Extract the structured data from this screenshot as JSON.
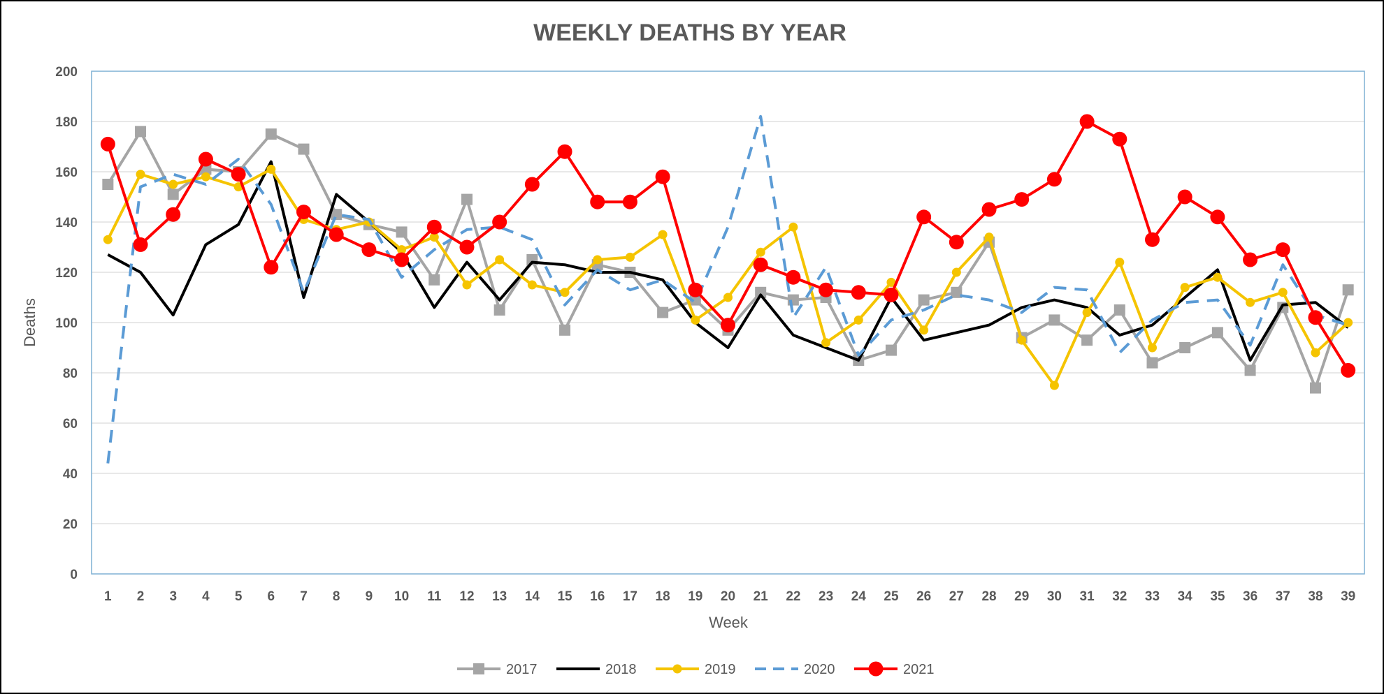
{
  "chart_data": {
    "type": "line",
    "title": "WEEKLY DEATHS BY YEAR",
    "xlabel": "Week",
    "ylabel": "Deaths",
    "ylim": [
      0,
      200
    ],
    "yticks": [
      0,
      20,
      40,
      60,
      80,
      100,
      120,
      140,
      160,
      180,
      200
    ],
    "grid": true,
    "legend_position": "bottom",
    "categories": [
      "1",
      "2",
      "3",
      "4",
      "5",
      "6",
      "7",
      "8",
      "9",
      "10",
      "11",
      "12",
      "13",
      "14",
      "15",
      "16",
      "17",
      "18",
      "19",
      "20",
      "21",
      "22",
      "23",
      "24",
      "25",
      "26",
      "27",
      "28",
      "29",
      "30",
      "31",
      "32",
      "33",
      "34",
      "35",
      "36",
      "37",
      "38",
      "39"
    ],
    "series": [
      {
        "name": "2017",
        "color": "#a5a5a5",
        "marker": "square",
        "dash": "solid",
        "values": [
          155,
          176,
          151,
          161,
          160,
          175,
          169,
          143,
          139,
          136,
          117,
          149,
          105,
          125,
          97,
          123,
          120,
          104,
          109,
          97,
          112,
          109,
          110,
          85,
          89,
          109,
          112,
          132,
          94,
          101,
          93,
          105,
          84,
          90,
          96,
          81,
          106,
          74,
          113
        ]
      },
      {
        "name": "2018",
        "color": "#000000",
        "marker": "none",
        "dash": "solid",
        "values": [
          127,
          120,
          103,
          131,
          139,
          164,
          110,
          151,
          140,
          128,
          106,
          124,
          109,
          124,
          123,
          120,
          120,
          117,
          100,
          90,
          111,
          95,
          90,
          85,
          110,
          93,
          96,
          99,
          106,
          109,
          106,
          95,
          99,
          110,
          121,
          85,
          107,
          108,
          98
        ]
      },
      {
        "name": "2019",
        "color": "#f5c400",
        "marker": "circle",
        "dash": "solid",
        "values": [
          133,
          159,
          155,
          158,
          154,
          161,
          141,
          137,
          140,
          129,
          134,
          115,
          125,
          115,
          112,
          125,
          126,
          135,
          101,
          110,
          128,
          138,
          92,
          101,
          116,
          97,
          120,
          134,
          93,
          75,
          104,
          124,
          90,
          114,
          118,
          108,
          112,
          88,
          100
        ]
      },
      {
        "name": "2020",
        "color": "#5b9bd5",
        "marker": "none",
        "dash": "dashed",
        "values": [
          44,
          154,
          159,
          155,
          165,
          147,
          112,
          143,
          141,
          118,
          129,
          137,
          138,
          133,
          107,
          121,
          113,
          117,
          108,
          138,
          182,
          102,
          122,
          87,
          101,
          105,
          111,
          109,
          104,
          114,
          113,
          88,
          101,
          108,
          109,
          91,
          123,
          103,
          99
        ]
      },
      {
        "name": "2021",
        "color": "#ff0000",
        "marker": "circle-large",
        "dash": "solid",
        "values": [
          171,
          131,
          143,
          165,
          159,
          122,
          144,
          135,
          129,
          125,
          138,
          130,
          140,
          155,
          168,
          148,
          148,
          158,
          113,
          99,
          123,
          118,
          113,
          112,
          111,
          142,
          132,
          145,
          149,
          157,
          180,
          173,
          133,
          150,
          142,
          125,
          129,
          102,
          81
        ]
      }
    ]
  }
}
